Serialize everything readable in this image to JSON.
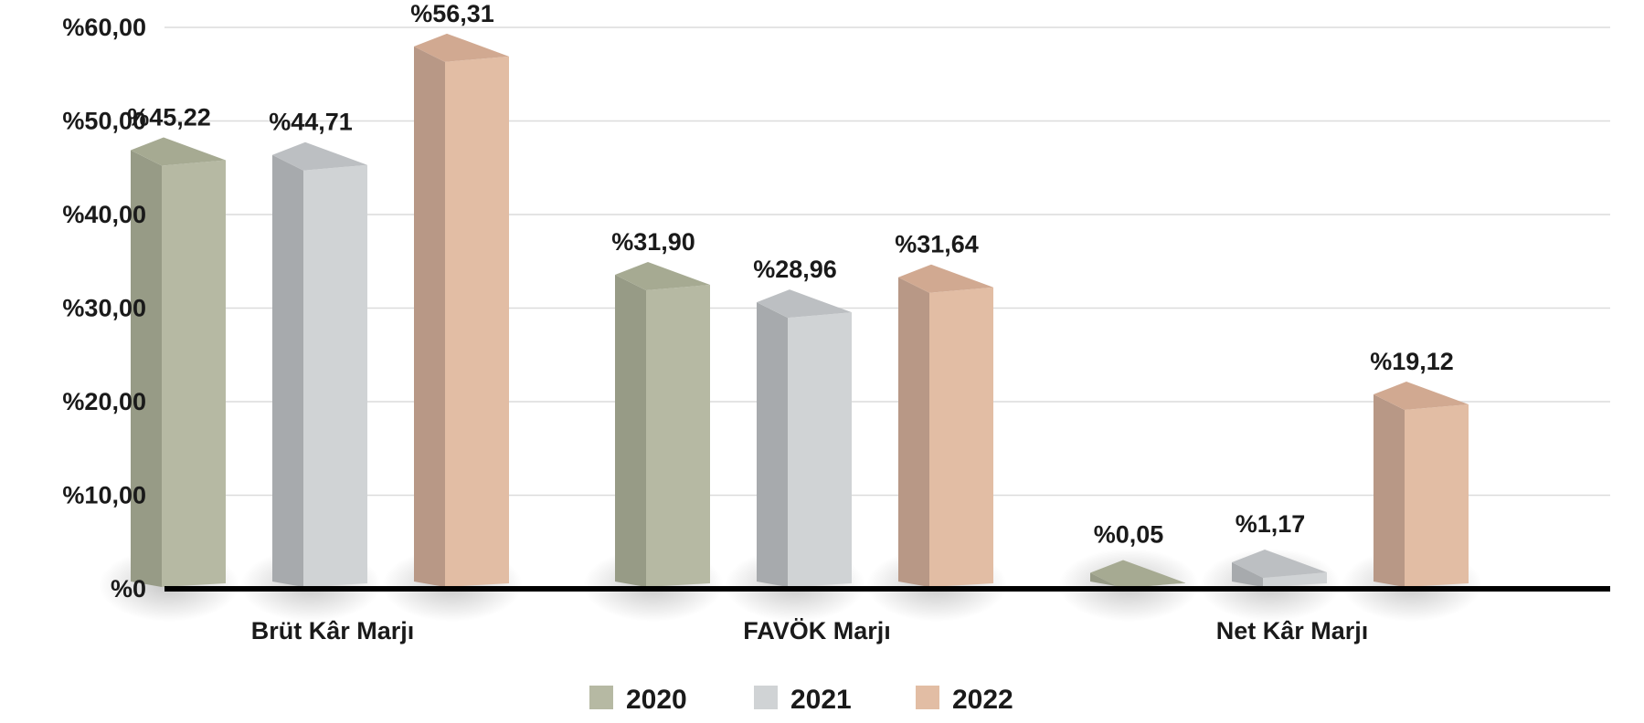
{
  "chart_data": {
    "type": "bar",
    "categories": [
      "Brüt Kâr Marjı",
      "FAVÖK Marjı",
      "Net Kâr Marjı"
    ],
    "series": [
      {
        "name": "2020",
        "values": [
          45.22,
          31.9,
          0.05
        ],
        "labels": [
          "%45,22",
          "%31,90",
          "%0,05"
        ],
        "color": "#b6b9a3",
        "side_color": "#979b86",
        "top_color": "#a6aa92"
      },
      {
        "name": "2021",
        "values": [
          44.71,
          28.96,
          1.17
        ],
        "labels": [
          "%44,71",
          "%28,96",
          "%1,17"
        ],
        "color": "#d0d3d5",
        "side_color": "#a7aaad",
        "top_color": "#bcbfc2"
      },
      {
        "name": "2022",
        "values": [
          56.31,
          31.64,
          19.12
        ],
        "labels": [
          "%56,31",
          "%31,64",
          "%19,12"
        ],
        "color": "#e2bda4",
        "side_color": "#b89886",
        "top_color": "#d1a991"
      }
    ],
    "yticks": [
      "%0",
      "%10,00",
      "%20,00",
      "%30,00",
      "%40,00",
      "%50,00",
      "%60,00"
    ],
    "ylim": [
      0,
      60
    ],
    "grid": true,
    "legend_position": "bottom-center",
    "title": "",
    "xlabel": "",
    "ylabel": ""
  }
}
